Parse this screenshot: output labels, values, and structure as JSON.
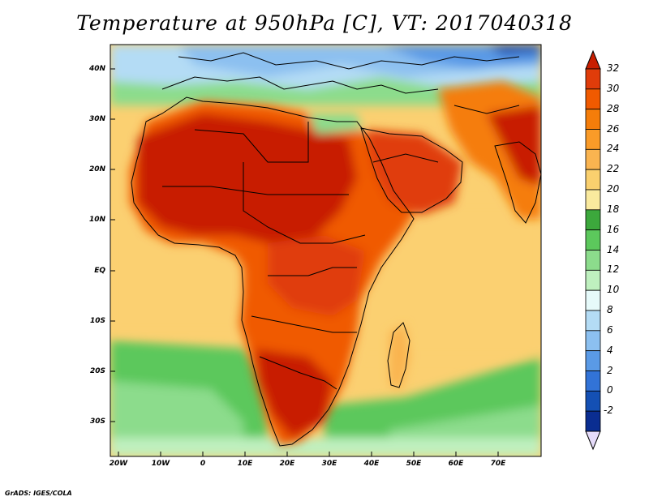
{
  "title": "Temperature at 950hPa [C], VT: 2017040318",
  "credit": "GrADS: IGES/COLA",
  "latitudes": [
    "40N",
    "30N",
    "20N",
    "10N",
    "EQ",
    "10S",
    "20S",
    "30S"
  ],
  "longitudes": [
    "20W",
    "10W",
    "0",
    "10E",
    "20E",
    "30E",
    "40E",
    "50E",
    "60E",
    "70E"
  ],
  "colorbar": {
    "labels": [
      "32",
      "30",
      "28",
      "26",
      "24",
      "22",
      "20",
      "18",
      "16",
      "14",
      "12",
      "10",
      "8",
      "6",
      "4",
      "2",
      "0",
      "-2"
    ],
    "colors": [
      "#c81e00",
      "#e03c0a",
      "#f05a00",
      "#f57d0a",
      "#fa9b28",
      "#fab450",
      "#fad06e",
      "#faea9e",
      "#3ca83c",
      "#5cc85c",
      "#8cdc8c",
      "#bff0bf",
      "#e6fafa",
      "#b4dcf5",
      "#8cc0f0",
      "#5a9ae6",
      "#3273d7",
      "#1450b4",
      "#0a2d91",
      "#0a0a64"
    ],
    "top_arrow_color": "#c81e00",
    "bottom_arrow_color": "#e6dcfa"
  },
  "chart_data": {
    "type": "heatmap",
    "title": "Temperature at 950hPa [C], VT: 2017040318",
    "variable": "Temperature at 950hPa",
    "units": "C",
    "valid_time": "2017040318",
    "lon_range": [
      -22,
      80
    ],
    "lat_range": [
      -37,
      45
    ],
    "levels": [
      -2,
      0,
      2,
      4,
      6,
      8,
      10,
      12,
      14,
      16,
      18,
      20,
      22,
      24,
      26,
      28,
      30,
      32
    ]
  }
}
